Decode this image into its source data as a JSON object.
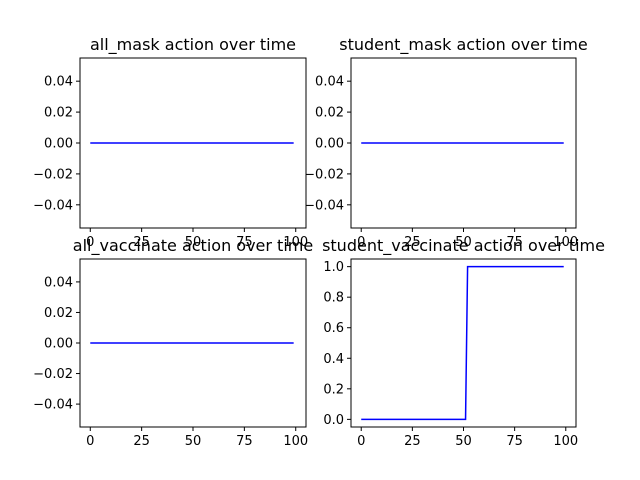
{
  "colors": {
    "line": "#0000ff",
    "axis": "#000000",
    "background": "#ffffff"
  },
  "chart_data": [
    {
      "type": "line",
      "title": "all_mask action over time",
      "xlabel": "",
      "ylabel": "",
      "xlim": [
        -5,
        105
      ],
      "ylim": [
        -0.055,
        0.055
      ],
      "xticks": [
        0,
        25,
        50,
        75,
        100
      ],
      "yticks": [
        -0.04,
        -0.02,
        0.0,
        0.02,
        0.04
      ],
      "ytick_labels": [
        "−0.04",
        "−0.02",
        "0.00",
        "0.02",
        "0.04"
      ],
      "grid": false,
      "series": [
        {
          "x": [
            0,
            99
          ],
          "y": [
            0,
            0
          ]
        }
      ]
    },
    {
      "type": "line",
      "title": "student_mask action over time",
      "xlabel": "",
      "ylabel": "",
      "xlim": [
        -5,
        105
      ],
      "ylim": [
        -0.055,
        0.055
      ],
      "xticks": [
        0,
        25,
        50,
        75,
        100
      ],
      "yticks": [
        -0.04,
        -0.02,
        0.0,
        0.02,
        0.04
      ],
      "ytick_labels": [
        "−0.04",
        "−0.02",
        "0.00",
        "0.02",
        "0.04"
      ],
      "grid": false,
      "series": [
        {
          "x": [
            0,
            99
          ],
          "y": [
            0,
            0
          ]
        }
      ]
    },
    {
      "type": "line",
      "title": "all_vaccinate action over time",
      "xlabel": "",
      "ylabel": "",
      "xlim": [
        -5,
        105
      ],
      "ylim": [
        -0.055,
        0.055
      ],
      "xticks": [
        0,
        25,
        50,
        75,
        100
      ],
      "yticks": [
        -0.04,
        -0.02,
        0.0,
        0.02,
        0.04
      ],
      "ytick_labels": [
        "−0.04",
        "−0.02",
        "0.00",
        "0.02",
        "0.04"
      ],
      "grid": false,
      "series": [
        {
          "x": [
            0,
            99
          ],
          "y": [
            0,
            0
          ]
        }
      ]
    },
    {
      "type": "line",
      "title": "student_vaccinate action over time",
      "xlabel": "",
      "ylabel": "",
      "xlim": [
        -5,
        105
      ],
      "ylim": [
        -0.05,
        1.05
      ],
      "xticks": [
        0,
        25,
        50,
        75,
        100
      ],
      "yticks": [
        0.0,
        0.2,
        0.4,
        0.6,
        0.8,
        1.0
      ],
      "ytick_labels": [
        "0.0",
        "0.2",
        "0.4",
        "0.6",
        "0.8",
        "1.0"
      ],
      "grid": false,
      "series": [
        {
          "x": [
            0,
            51,
            52,
            99
          ],
          "y": [
            0,
            0,
            1,
            1
          ]
        }
      ]
    }
  ]
}
